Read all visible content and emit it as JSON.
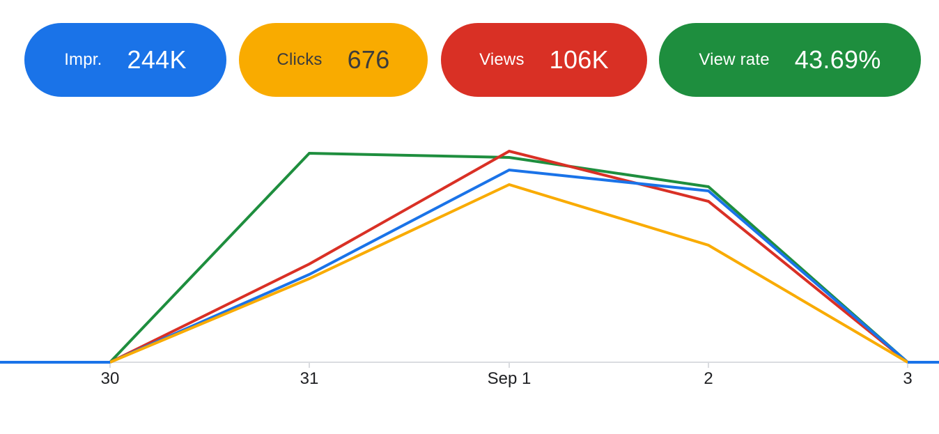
{
  "metrics": [
    {
      "label": "Impr.",
      "value": "244K",
      "color": "#1a73e8"
    },
    {
      "label": "Clicks",
      "value": "676",
      "color": "#f9ab00"
    },
    {
      "label": "Views",
      "value": "106K",
      "color": "#d93025"
    },
    {
      "label": "View rate",
      "value": "43.69%",
      "color": "#1e8e3e"
    }
  ],
  "chart_data": {
    "type": "line",
    "title": "",
    "xlabel": "",
    "ylabel": "",
    "categories": [
      "30",
      "31",
      "Sep 1",
      "2",
      "3"
    ],
    "ylim": [
      0,
      100
    ],
    "y_axis_visible": false,
    "grid": false,
    "legend": "none",
    "series": [
      {
        "color": "#1e8e3e",
        "values": [
          0,
          100,
          98,
          84,
          0
        ]
      },
      {
        "color": "#d93025",
        "values": [
          0,
          47,
          101,
          77,
          0
        ]
      },
      {
        "color": "#1a73e8",
        "values": [
          0,
          42,
          92,
          82,
          0
        ]
      },
      {
        "color": "#f9ab00",
        "values": [
          0,
          40,
          85,
          56,
          0
        ]
      }
    ],
    "baseline_color": "#1a73e8"
  }
}
